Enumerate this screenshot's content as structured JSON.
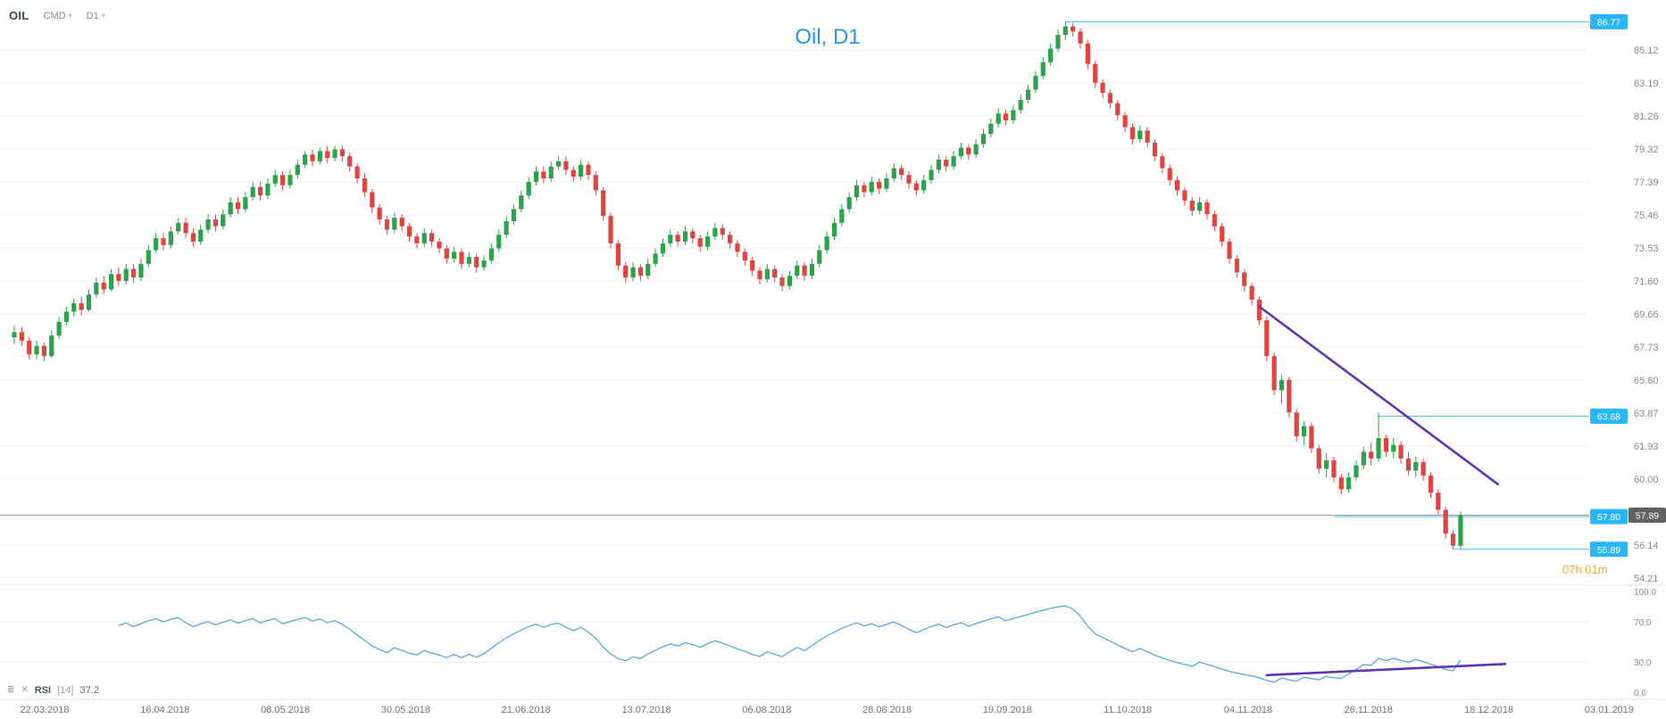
{
  "toolbar": {
    "symbol": "OIL",
    "market": "CMD",
    "timeframe": "D1",
    "caret": "▾"
  },
  "chart_title": "Oil, D1",
  "countdown": "07h 01m",
  "rsi_panel": {
    "settings_icon": "≣",
    "close_icon": "✕",
    "name": "RSI",
    "period_label": "[14]",
    "value": "37.2",
    "ticks": [
      "100.0",
      "70.0",
      "30.0",
      "0.0"
    ]
  },
  "price_axis": {
    "ticks": [
      "85.12",
      "83.19",
      "81.26",
      "79.32",
      "77.39",
      "75.46",
      "73.53",
      "71.60",
      "69.66",
      "67.73",
      "65.80",
      "63.87",
      "61.93",
      "60.00",
      "56.14",
      "54.21"
    ],
    "current_label": "57.89"
  },
  "date_axis": [
    "22.03.2018",
    "16.04.2018",
    "08.05.2018",
    "30.05.2018",
    "21.06.2018",
    "13.07.2018",
    "06.08.2018",
    "28.08.2018",
    "19.09.2018",
    "11.10.2018",
    "04.11.2018",
    "26.11.2018",
    "18.12.2018",
    "03.01.2019"
  ],
  "colors": {
    "bull": "#2ca24c",
    "bear": "#e04440",
    "level_line": "#3fc0f0",
    "level_badge": "#29b6f6",
    "current_line": "#9b9b9b",
    "current_badge": "#616161",
    "trendline": "#5e35b1",
    "rsi_line": "#55aae2",
    "title": "#2196f3",
    "countdown": "#ffa726",
    "grid": "#f2f2f2",
    "divider": "#e3e3e3",
    "axis_text": "#8a8a8a"
  },
  "chart_data": {
    "type": "candlestick",
    "title": "Oil, D1",
    "timeframe": "D1",
    "x_range": [
      "22.03.2018",
      "03.01.2019"
    ],
    "y_axis": {
      "min": 54.21,
      "max": 86.77,
      "tick_step": 1.93
    },
    "candles": [
      [
        68.3,
        69.0,
        67.9,
        68.6
      ],
      [
        68.6,
        68.9,
        67.8,
        68.1
      ],
      [
        68.1,
        68.3,
        67.0,
        67.3
      ],
      [
        67.3,
        68.1,
        67.0,
        67.8
      ],
      [
        67.8,
        68.0,
        66.9,
        67.2
      ],
      [
        67.2,
        68.7,
        67.1,
        68.4
      ],
      [
        68.4,
        69.5,
        68.2,
        69.2
      ],
      [
        69.2,
        70.1,
        69.0,
        69.8
      ],
      [
        69.8,
        70.6,
        69.5,
        70.3
      ],
      [
        70.3,
        70.7,
        69.6,
        69.9
      ],
      [
        69.9,
        71.1,
        69.8,
        70.8
      ],
      [
        70.8,
        71.8,
        70.6,
        71.5
      ],
      [
        71.5,
        71.9,
        70.8,
        71.1
      ],
      [
        71.1,
        72.3,
        71.0,
        72.0
      ],
      [
        72.0,
        72.4,
        71.3,
        71.6
      ],
      [
        71.6,
        72.6,
        71.4,
        72.3
      ],
      [
        72.3,
        72.6,
        71.5,
        71.8
      ],
      [
        71.8,
        72.9,
        71.6,
        72.6
      ],
      [
        72.6,
        73.7,
        72.4,
        73.4
      ],
      [
        73.4,
        74.4,
        73.2,
        74.1
      ],
      [
        74.1,
        74.4,
        73.4,
        73.7
      ],
      [
        73.7,
        74.8,
        73.5,
        74.5
      ],
      [
        74.5,
        75.3,
        74.3,
        75.0
      ],
      [
        75.0,
        75.3,
        74.1,
        74.4
      ],
      [
        74.4,
        74.7,
        73.6,
        73.9
      ],
      [
        73.9,
        74.9,
        73.7,
        74.6
      ],
      [
        74.6,
        75.5,
        74.4,
        75.2
      ],
      [
        75.2,
        75.5,
        74.5,
        74.8
      ],
      [
        74.8,
        75.8,
        74.6,
        75.5
      ],
      [
        75.5,
        76.5,
        75.3,
        76.2
      ],
      [
        76.2,
        76.5,
        75.5,
        75.8
      ],
      [
        75.8,
        76.8,
        75.6,
        76.5
      ],
      [
        76.5,
        77.4,
        76.3,
        77.1
      ],
      [
        77.1,
        77.4,
        76.3,
        76.6
      ],
      [
        76.6,
        77.6,
        76.4,
        77.3
      ],
      [
        77.3,
        78.1,
        77.1,
        77.8
      ],
      [
        77.8,
        78.0,
        76.9,
        77.2
      ],
      [
        77.2,
        78.1,
        77.0,
        77.8
      ],
      [
        77.8,
        78.7,
        77.6,
        78.4
      ],
      [
        78.4,
        79.2,
        78.2,
        79.0
      ],
      [
        79.0,
        79.3,
        78.3,
        78.6
      ],
      [
        78.6,
        79.4,
        78.4,
        79.2
      ],
      [
        79.2,
        79.5,
        78.5,
        78.8
      ],
      [
        78.8,
        79.5,
        78.6,
        79.3
      ],
      [
        79.3,
        79.5,
        78.6,
        78.9
      ],
      [
        78.9,
        79.1,
        78.0,
        78.3
      ],
      [
        78.3,
        78.5,
        77.3,
        77.6
      ],
      [
        77.6,
        77.9,
        76.5,
        76.8
      ],
      [
        76.8,
        77.0,
        75.6,
        75.9
      ],
      [
        75.9,
        76.1,
        74.9,
        75.2
      ],
      [
        75.2,
        75.4,
        74.3,
        74.6
      ],
      [
        74.6,
        75.6,
        74.4,
        75.3
      ],
      [
        75.3,
        75.5,
        74.5,
        74.8
      ],
      [
        74.8,
        75.0,
        73.9,
        74.2
      ],
      [
        74.2,
        74.4,
        73.5,
        73.8
      ],
      [
        73.8,
        74.7,
        73.6,
        74.4
      ],
      [
        74.4,
        74.6,
        73.6,
        73.9
      ],
      [
        73.9,
        74.1,
        73.2,
        73.5
      ],
      [
        73.5,
        73.7,
        72.6,
        72.9
      ],
      [
        72.9,
        73.6,
        72.7,
        73.3
      ],
      [
        73.3,
        73.5,
        72.3,
        72.6
      ],
      [
        72.6,
        73.3,
        72.4,
        73.0
      ],
      [
        73.0,
        73.2,
        72.1,
        72.4
      ],
      [
        72.4,
        73.1,
        72.2,
        72.8
      ],
      [
        72.8,
        73.8,
        72.6,
        73.5
      ],
      [
        73.5,
        74.6,
        73.3,
        74.3
      ],
      [
        74.3,
        75.4,
        74.1,
        75.1
      ],
      [
        75.1,
        76.1,
        74.9,
        75.8
      ],
      [
        75.8,
        76.9,
        75.6,
        76.6
      ],
      [
        76.6,
        77.7,
        76.4,
        77.4
      ],
      [
        77.4,
        78.3,
        77.2,
        78.0
      ],
      [
        78.0,
        78.3,
        77.3,
        77.6
      ],
      [
        77.6,
        78.6,
        77.4,
        78.3
      ],
      [
        78.3,
        78.9,
        78.1,
        78.6
      ],
      [
        78.6,
        78.9,
        77.8,
        78.1
      ],
      [
        78.1,
        78.3,
        77.4,
        77.7
      ],
      [
        77.7,
        78.7,
        77.5,
        78.4
      ],
      [
        78.4,
        78.6,
        77.5,
        77.8
      ],
      [
        77.8,
        78.0,
        76.6,
        76.9
      ],
      [
        76.9,
        77.1,
        75.1,
        75.4
      ],
      [
        75.4,
        75.6,
        73.5,
        73.8
      ],
      [
        73.8,
        74.0,
        72.2,
        72.5
      ],
      [
        72.5,
        72.7,
        71.5,
        71.8
      ],
      [
        71.8,
        72.7,
        71.6,
        72.4
      ],
      [
        72.4,
        72.6,
        71.6,
        71.9
      ],
      [
        71.9,
        72.9,
        71.7,
        72.6
      ],
      [
        72.6,
        73.5,
        72.4,
        73.2
      ],
      [
        73.2,
        74.1,
        73.0,
        73.8
      ],
      [
        73.8,
        74.6,
        73.6,
        74.3
      ],
      [
        74.3,
        74.5,
        73.6,
        73.9
      ],
      [
        73.9,
        74.8,
        73.7,
        74.5
      ],
      [
        74.5,
        74.7,
        73.8,
        74.1
      ],
      [
        74.1,
        74.3,
        73.3,
        73.6
      ],
      [
        73.6,
        74.5,
        73.4,
        74.2
      ],
      [
        74.2,
        75.0,
        74.0,
        74.7
      ],
      [
        74.7,
        74.9,
        74.0,
        74.3
      ],
      [
        74.3,
        74.5,
        73.5,
        73.8
      ],
      [
        73.8,
        74.0,
        73.0,
        73.3
      ],
      [
        73.3,
        73.5,
        72.5,
        72.8
      ],
      [
        72.8,
        73.0,
        71.9,
        72.2
      ],
      [
        72.2,
        72.4,
        71.4,
        71.7
      ],
      [
        71.7,
        72.6,
        71.5,
        72.3
      ],
      [
        72.3,
        72.5,
        71.5,
        71.8
      ],
      [
        71.8,
        72.0,
        71.0,
        71.3
      ],
      [
        71.3,
        72.2,
        71.1,
        71.9
      ],
      [
        71.9,
        72.8,
        71.7,
        72.5
      ],
      [
        72.5,
        72.7,
        71.6,
        71.9
      ],
      [
        71.9,
        72.9,
        71.7,
        72.6
      ],
      [
        72.6,
        73.7,
        72.4,
        73.4
      ],
      [
        73.4,
        74.5,
        73.2,
        74.2
      ],
      [
        74.2,
        75.3,
        74.0,
        75.0
      ],
      [
        75.0,
        76.1,
        74.8,
        75.8
      ],
      [
        75.8,
        76.8,
        75.6,
        76.5
      ],
      [
        76.5,
        77.5,
        76.3,
        77.2
      ],
      [
        77.2,
        77.4,
        76.5,
        76.8
      ],
      [
        76.8,
        77.7,
        76.6,
        77.4
      ],
      [
        77.4,
        77.6,
        76.7,
        77.0
      ],
      [
        77.0,
        77.9,
        76.8,
        77.6
      ],
      [
        77.6,
        78.5,
        77.4,
        78.2
      ],
      [
        78.2,
        78.4,
        77.5,
        77.8
      ],
      [
        77.8,
        78.0,
        77.0,
        77.3
      ],
      [
        77.3,
        77.5,
        76.6,
        76.9
      ],
      [
        76.9,
        77.8,
        76.7,
        77.5
      ],
      [
        77.5,
        78.4,
        77.3,
        78.1
      ],
      [
        78.1,
        79.0,
        77.9,
        78.7
      ],
      [
        78.7,
        78.9,
        78.0,
        78.3
      ],
      [
        78.3,
        79.2,
        78.1,
        78.9
      ],
      [
        78.9,
        79.7,
        78.7,
        79.4
      ],
      [
        79.4,
        79.6,
        78.7,
        79.0
      ],
      [
        79.0,
        79.9,
        78.8,
        79.6
      ],
      [
        79.6,
        80.5,
        79.4,
        80.2
      ],
      [
        80.2,
        81.1,
        80.0,
        80.8
      ],
      [
        80.8,
        81.7,
        80.6,
        81.4
      ],
      [
        81.4,
        81.6,
        80.7,
        81.0
      ],
      [
        81.0,
        81.9,
        80.8,
        81.6
      ],
      [
        81.6,
        82.5,
        81.4,
        82.2
      ],
      [
        82.2,
        83.1,
        82.0,
        82.8
      ],
      [
        82.8,
        83.9,
        82.6,
        83.6
      ],
      [
        83.6,
        84.7,
        83.4,
        84.4
      ],
      [
        84.4,
        85.5,
        84.2,
        85.2
      ],
      [
        85.2,
        86.3,
        85.0,
        86.0
      ],
      [
        86.0,
        86.77,
        85.7,
        86.5
      ],
      [
        86.5,
        86.7,
        85.9,
        86.2
      ],
      [
        86.2,
        86.4,
        85.2,
        85.5
      ],
      [
        85.5,
        85.7,
        84.0,
        84.3
      ],
      [
        84.3,
        84.5,
        82.9,
        83.2
      ],
      [
        83.2,
        83.4,
        82.3,
        82.6
      ],
      [
        82.6,
        82.8,
        81.7,
        82.0
      ],
      [
        82.0,
        82.2,
        81.0,
        81.3
      ],
      [
        81.3,
        81.5,
        80.3,
        80.6
      ],
      [
        80.6,
        80.8,
        79.6,
        79.9
      ],
      [
        79.9,
        80.7,
        79.7,
        80.4
      ],
      [
        80.4,
        80.6,
        79.4,
        79.7
      ],
      [
        79.7,
        79.9,
        78.6,
        78.9
      ],
      [
        78.9,
        79.1,
        77.9,
        78.2
      ],
      [
        78.2,
        78.4,
        77.2,
        77.5
      ],
      [
        77.5,
        77.7,
        76.6,
        76.9
      ],
      [
        76.9,
        77.1,
        76.0,
        76.3
      ],
      [
        76.3,
        76.5,
        75.4,
        75.7
      ],
      [
        75.7,
        76.5,
        75.5,
        76.2
      ],
      [
        76.2,
        76.4,
        75.2,
        75.5
      ],
      [
        75.5,
        75.7,
        74.5,
        74.8
      ],
      [
        74.8,
        75.0,
        73.6,
        73.9
      ],
      [
        73.9,
        74.1,
        72.6,
        72.9
      ],
      [
        72.9,
        73.1,
        71.8,
        72.1
      ],
      [
        72.1,
        72.3,
        71.0,
        71.3
      ],
      [
        71.3,
        71.5,
        70.2,
        70.5
      ],
      [
        70.5,
        70.7,
        69.0,
        69.3
      ],
      [
        69.3,
        69.5,
        66.9,
        67.2
      ],
      [
        67.2,
        67.4,
        64.9,
        65.2
      ],
      [
        65.2,
        66.1,
        64.4,
        65.8
      ],
      [
        65.8,
        66.0,
        63.6,
        63.9
      ],
      [
        63.9,
        64.1,
        62.2,
        62.5
      ],
      [
        62.5,
        63.4,
        62.0,
        63.1
      ],
      [
        63.1,
        63.3,
        61.5,
        61.8
      ],
      [
        61.8,
        62.0,
        60.3,
        60.6
      ],
      [
        60.6,
        61.5,
        60.1,
        61.1
      ],
      [
        61.1,
        61.3,
        59.8,
        60.1
      ],
      [
        60.1,
        60.3,
        59.1,
        59.4
      ],
      [
        59.4,
        60.4,
        59.2,
        60.1
      ],
      [
        60.1,
        61.1,
        59.9,
        60.8
      ],
      [
        60.8,
        61.9,
        60.6,
        61.6
      ],
      [
        61.6,
        62.1,
        60.8,
        61.2
      ],
      [
        61.2,
        63.87,
        61.0,
        62.4
      ],
      [
        62.4,
        62.6,
        61.3,
        61.6
      ],
      [
        61.6,
        62.4,
        61.2,
        62.0
      ],
      [
        62.0,
        62.2,
        60.9,
        61.2
      ],
      [
        61.2,
        61.6,
        60.2,
        60.5
      ],
      [
        60.5,
        61.3,
        60.1,
        61.0
      ],
      [
        61.0,
        61.2,
        59.9,
        60.2
      ],
      [
        60.2,
        60.4,
        58.9,
        59.2
      ],
      [
        59.2,
        59.4,
        57.9,
        58.2
      ],
      [
        58.2,
        58.4,
        56.5,
        56.8
      ],
      [
        56.8,
        57.0,
        55.89,
        56.1
      ],
      [
        56.1,
        58.1,
        55.89,
        57.89
      ]
    ],
    "price_levels": [
      {
        "label": "86.77",
        "price": 86.77,
        "start_index": 141
      },
      {
        "label": "63.68",
        "price": 63.68,
        "start_index": 183
      },
      {
        "label": "57.80",
        "price": 57.8,
        "start_index": 177
      },
      {
        "label": "55.89",
        "price": 55.89,
        "start_index": 193
      }
    ],
    "current_price": 57.89,
    "trendlines": {
      "price": {
        "from_index": 167,
        "from_price": 70.1,
        "to_index": 199,
        "to_price": 59.7
      },
      "rsi": {
        "from_index": 168,
        "from_value": 17,
        "to_index": 200,
        "to_value": 28
      }
    },
    "indicator": {
      "type": "rsi",
      "period": 14,
      "last_value": 37.2,
      "levels": [
        70,
        30
      ]
    }
  }
}
